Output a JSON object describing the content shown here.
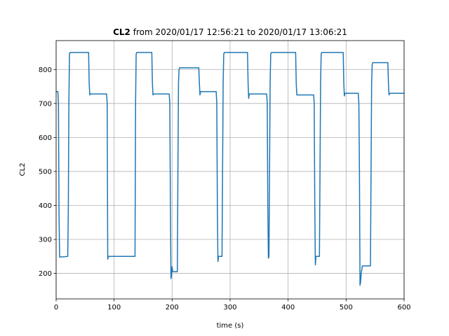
{
  "chart_data": {
    "type": "line",
    "title_bold": "CL2",
    "title_rest": " from 2020/01/17 12:56:21 to 2020/01/17 13:06:21",
    "xlabel": "time (s)",
    "ylabel": "CL2",
    "xlim": [
      0,
      600
    ],
    "ylim": [
      125,
      885
    ],
    "xticks": [
      0,
      100,
      200,
      300,
      400,
      500,
      600
    ],
    "yticks": [
      200,
      300,
      400,
      500,
      600,
      700,
      800
    ],
    "grid": true,
    "line_color": "#1f77b4",
    "series": [
      {
        "x": [
          0,
          3,
          4,
          5,
          6,
          20,
          21,
          22,
          23,
          24,
          56,
          57,
          58,
          59,
          87,
          88,
          89,
          90,
          136,
          137,
          138,
          139,
          165,
          166,
          167,
          168,
          195,
          196,
          197,
          198,
          199,
          200,
          201,
          209,
          210,
          211,
          212,
          213,
          246,
          247,
          248,
          249,
          276,
          277,
          278,
          279,
          280,
          286,
          287,
          288,
          289,
          290,
          330,
          331,
          332,
          333,
          334,
          363,
          364,
          365,
          366,
          367,
          368,
          369,
          370,
          371,
          372,
          374,
          413,
          414,
          415,
          416,
          444,
          445,
          446,
          447,
          448,
          454,
          455,
          456,
          457,
          458,
          495,
          496,
          497,
          498,
          521,
          522,
          523,
          524,
          525,
          526,
          527,
          528,
          530,
          531,
          542,
          543,
          544,
          545,
          546,
          572,
          573,
          574,
          575,
          600
        ],
        "y": [
          735,
          735,
          700,
          380,
          248,
          250,
          380,
          700,
          845,
          850,
          850,
          760,
          725,
          728,
          728,
          700,
          242,
          250,
          250,
          700,
          845,
          850,
          850,
          760,
          725,
          728,
          728,
          700,
          420,
          185,
          195,
          220,
          205,
          205,
          500,
          760,
          800,
          805,
          805,
          760,
          725,
          735,
          735,
          700,
          400,
          235,
          250,
          250,
          500,
          760,
          845,
          850,
          850,
          760,
          715,
          728,
          728,
          728,
          700,
          400,
          245,
          250,
          500,
          760,
          845,
          850,
          850,
          850,
          850,
          760,
          725,
          725,
          725,
          700,
          400,
          225,
          250,
          250,
          500,
          760,
          845,
          850,
          850,
          760,
          722,
          730,
          730,
          700,
          500,
          165,
          175,
          200,
          210,
          222,
          222,
          222,
          222,
          500,
          760,
          815,
          820,
          820,
          760,
          725,
          730,
          730
        ]
      }
    ]
  }
}
